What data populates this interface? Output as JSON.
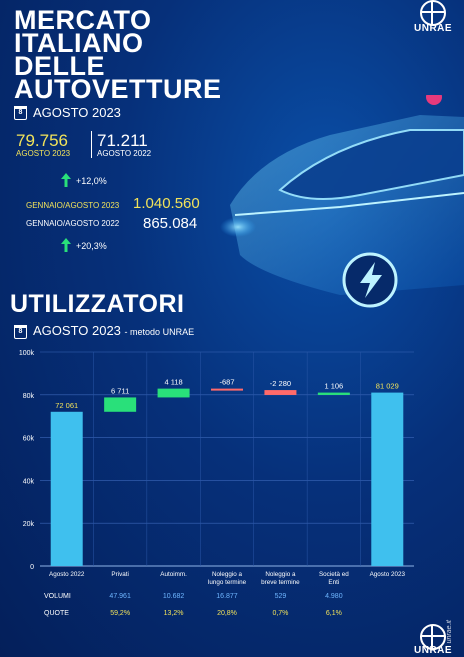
{
  "header": {
    "title_lines": [
      "MERCATO",
      "ITALIANO",
      "DELLE",
      "AUTOVETTURE"
    ],
    "calendar_day": "8",
    "period": "AGOSTO 2023",
    "logo_text": "UNRAE"
  },
  "stats": {
    "current_value": "79.756",
    "current_label": "AGOSTO 2023",
    "previous_value": "71.211",
    "previous_label": "AGOSTO 2022",
    "monthly_change": "+12,0%",
    "ytd_current_label": "GENNAIO/AGOSTO 2023",
    "ytd_current_value": "1.040.560",
    "ytd_previous_label": "GENNAIO/AGOSTO 2022",
    "ytd_previous_value": "865.084",
    "ytd_change": "+20,3%"
  },
  "section": {
    "title": "UTILIZZATORI",
    "calendar_day": "8",
    "period": "AGOSTO 2023",
    "method": "- metodo UNRAE"
  },
  "chart_data": {
    "type": "bar",
    "subtype": "waterfall",
    "categories": [
      "Agosto 2022",
      "Privati",
      "Autoimm.",
      "Noleggio a lungo termine",
      "Noleggio a breve termine",
      "Società ed Enti",
      "Agosto 2023"
    ],
    "values": [
      72061,
      6711,
      4118,
      -687,
      -2280,
      1106,
      81029
    ],
    "value_labels": [
      "72 061",
      "6 711",
      "4 118",
      "-687",
      "-2 280",
      "1 106",
      "81 029"
    ],
    "ylim": [
      0,
      100000
    ],
    "yticks": [
      0,
      20000,
      40000,
      60000,
      80000,
      100000
    ],
    "ytick_labels": [
      "0",
      "20k",
      "40k",
      "60k",
      "80k",
      "100k"
    ],
    "grid": true,
    "colors": {
      "total": "#3fc0ee",
      "increase": "#29e07a",
      "decrease": "#ff6a6a"
    },
    "table": {
      "rows": [
        {
          "label": "VOLUMI",
          "values": [
            "47.961",
            "10.682",
            "16.877",
            "529",
            "4.980"
          ]
        },
        {
          "label": "QUOTE",
          "values": [
            "59,2%",
            "13,2%",
            "20,8%",
            "0,7%",
            "6,1%"
          ]
        }
      ]
    }
  },
  "footer": {
    "side_text": "unrae.it",
    "logo_text": "UNRAE"
  }
}
